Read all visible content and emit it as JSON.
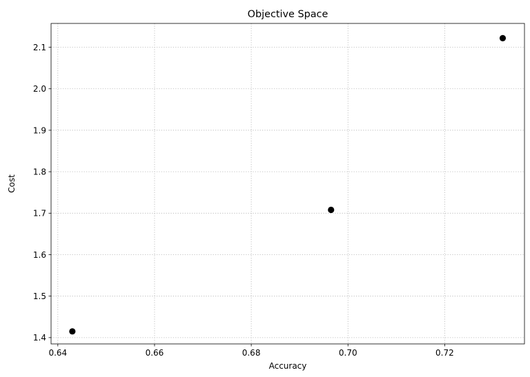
{
  "chart_data": {
    "type": "scatter",
    "title": "Objective Space",
    "xlabel": "Accuracy",
    "ylabel": "Cost",
    "xlim": [
      0.6386,
      0.7365
    ],
    "ylim": [
      1.3848,
      2.1575
    ],
    "xticks": [
      0.64,
      0.66,
      0.68,
      0.7,
      0.72
    ],
    "xtick_labels": [
      "0.64",
      "0.66",
      "0.68",
      "0.70",
      "0.72"
    ],
    "yticks": [
      1.4,
      1.5,
      1.6,
      1.7,
      1.8,
      1.9,
      2.0,
      2.1
    ],
    "ytick_labels": [
      "1.4",
      "1.5",
      "1.6",
      "1.7",
      "1.8",
      "1.9",
      "2.0",
      "2.1"
    ],
    "grid": true,
    "marker_color": "#000000",
    "points": [
      {
        "x": 0.643,
        "y": 1.415
      },
      {
        "x": 0.6965,
        "y": 1.708
      },
      {
        "x": 0.732,
        "y": 2.122
      }
    ]
  }
}
